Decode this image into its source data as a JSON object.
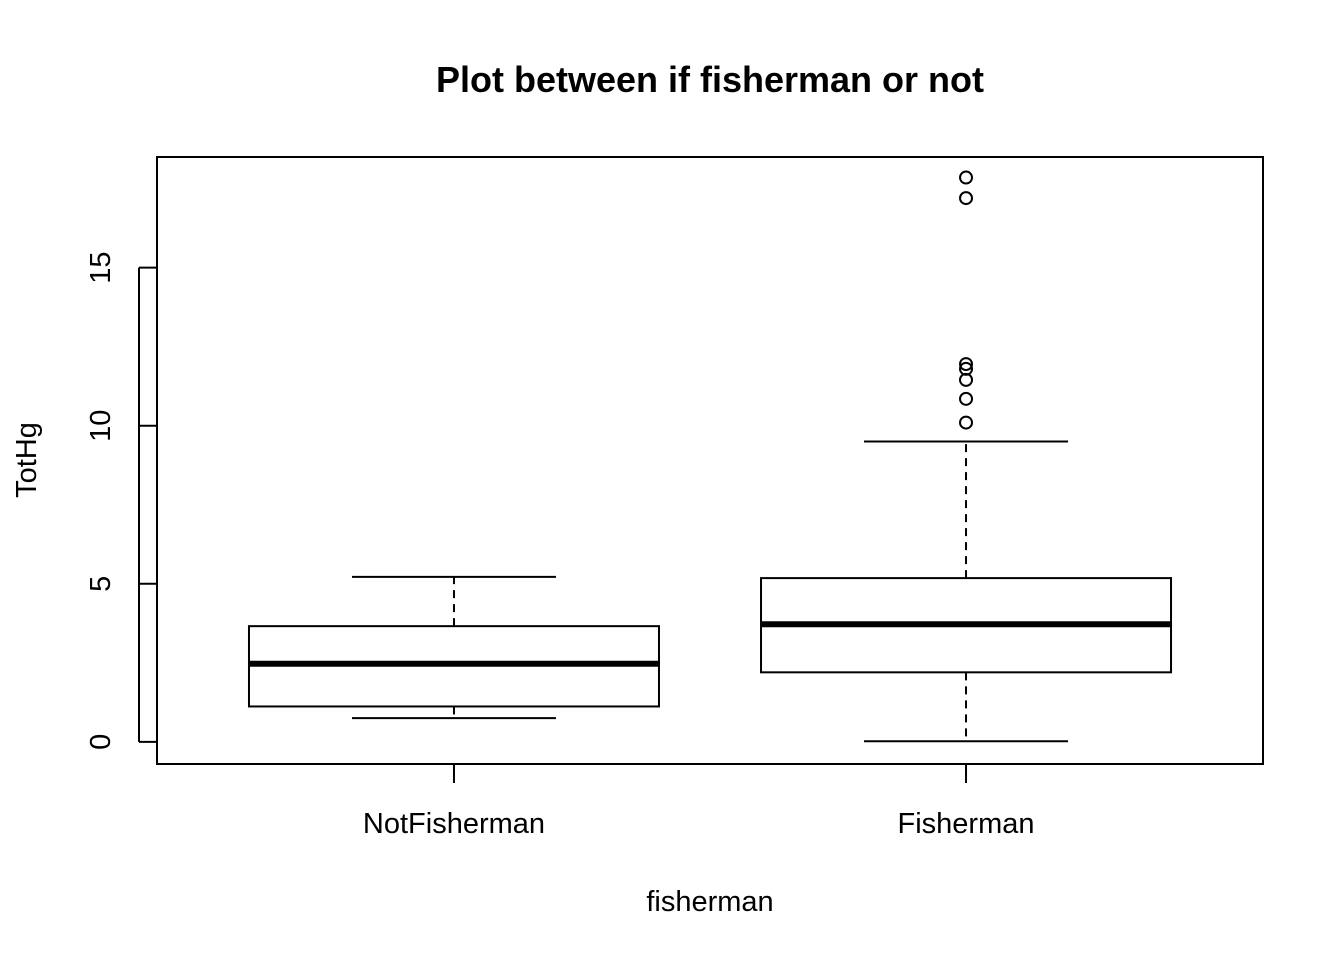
{
  "chart_data": {
    "type": "boxplot",
    "title": "Plot between if fisherman or not",
    "xlabel": "fisherman",
    "ylabel": "TotHg",
    "ylim": [
      -0.7,
      18.5
    ],
    "yticks": [
      0,
      5,
      10,
      15
    ],
    "categories": [
      "NotFisherman",
      "Fisherman"
    ],
    "boxes": [
      {
        "category": "NotFisherman",
        "whisker_low": 0.75,
        "q1": 1.12,
        "median": 2.47,
        "q3": 3.66,
        "whisker_high": 5.22,
        "outliers": []
      },
      {
        "category": "Fisherman",
        "whisker_low": 0.02,
        "q1": 2.2,
        "median": 3.72,
        "q3": 5.18,
        "whisker_high": 9.5,
        "outliers": [
          10.1,
          10.85,
          11.45,
          11.8,
          11.95,
          17.2,
          17.85
        ]
      }
    ],
    "grid": false,
    "legend": "none",
    "colors": {
      "line": "#000000",
      "fill": "#ffffff"
    }
  }
}
